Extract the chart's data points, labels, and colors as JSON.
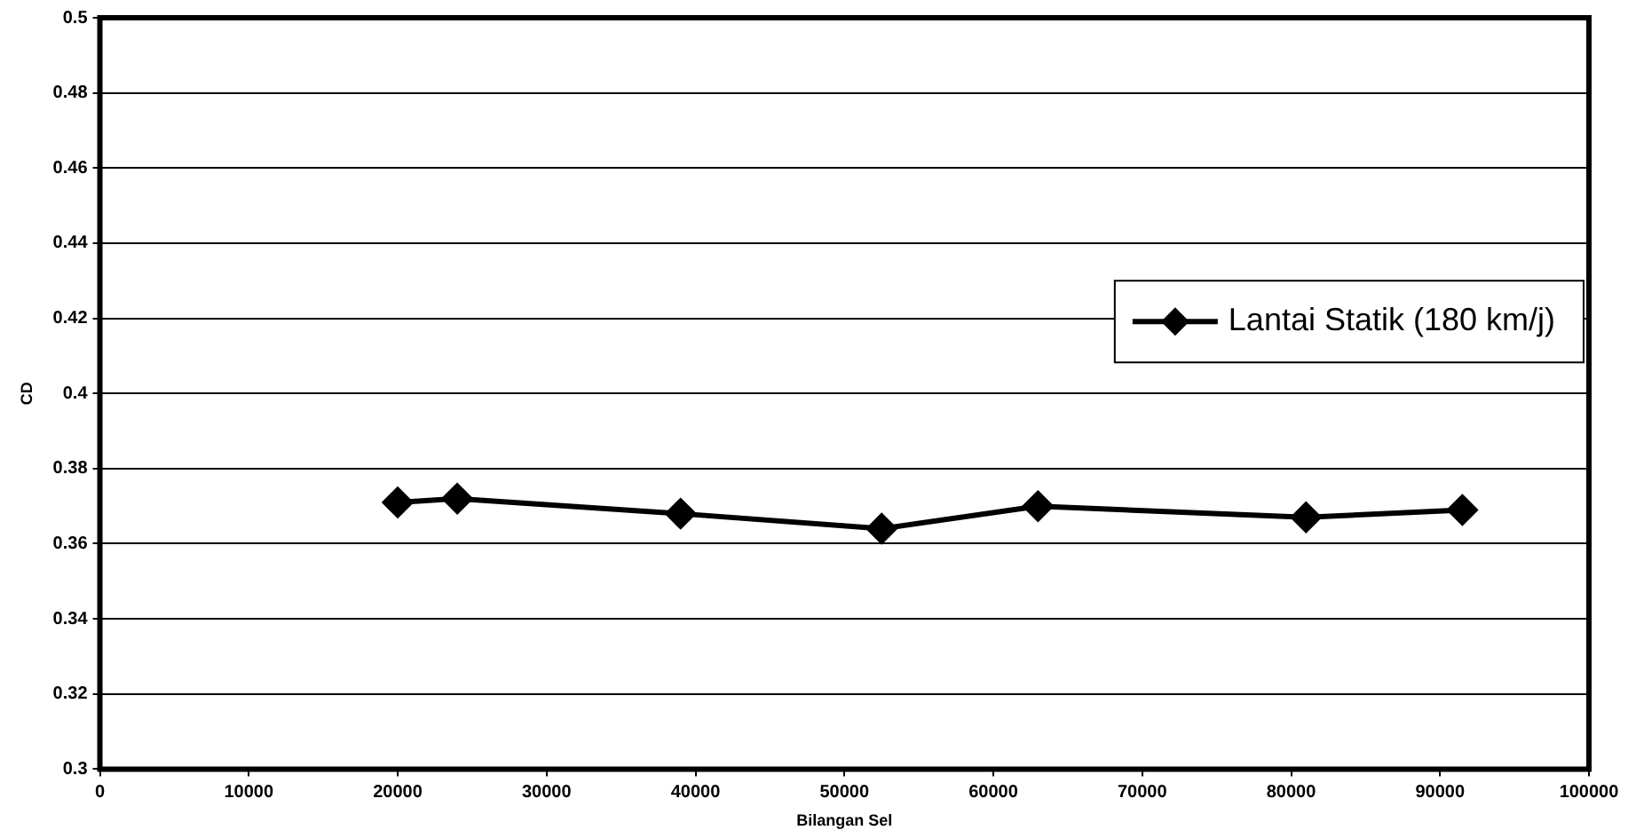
{
  "chart_data": {
    "type": "line",
    "xlabel": "Bilangan Sel",
    "ylabel": "CD",
    "x": [
      20000,
      24000,
      39000,
      52500,
      63000,
      81000,
      91500
    ],
    "series": [
      {
        "name": "Lantai Statik (180 km/j)",
        "color": "#000000",
        "values": [
          0.371,
          0.372,
          0.368,
          0.364,
          0.37,
          0.367,
          0.369
        ]
      }
    ],
    "xlim": [
      0,
      100000
    ],
    "xticks": [
      0,
      10000,
      20000,
      30000,
      40000,
      50000,
      60000,
      70000,
      80000,
      90000,
      100000
    ],
    "ylim": [
      0.3,
      0.5
    ],
    "yticks": [
      0.3,
      0.32,
      0.34,
      0.36,
      0.38,
      0.4,
      0.42,
      0.44,
      0.46,
      0.48,
      0.5
    ],
    "grid": "y",
    "legend": "right",
    "marker": "diamond",
    "line_style": "solid"
  }
}
